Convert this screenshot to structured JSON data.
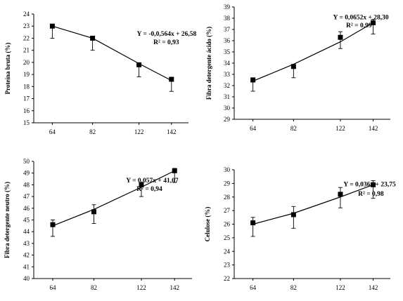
{
  "chart_data": [
    {
      "type": "scatter",
      "categories": [
        "64",
        "82",
        "122",
        "142"
      ],
      "ylabel": "Proteína bruta (%)",
      "yticks": [
        "15",
        "16",
        "17",
        "18",
        "19",
        "20",
        "21",
        "22",
        "23",
        "24"
      ],
      "ylim": [
        15,
        24
      ],
      "values": [
        23.0,
        22.0,
        19.8,
        18.6
      ],
      "err_low": [
        1.0,
        1.0,
        1.0,
        1.0
      ],
      "err_high": [
        0.0,
        0.0,
        0.0,
        0.0
      ],
      "trend": [
        23.0,
        22.0,
        19.9,
        18.5
      ],
      "equation": "Y = -0,0,564x + 26,58",
      "r2": "R² = 0,93",
      "eq_anchor": [
        2,
        22.2
      ],
      "r2_anchor": [
        2.32,
        21.5
      ]
    },
    {
      "type": "scatter",
      "categories": [
        "64",
        "82",
        "122",
        "142"
      ],
      "ylabel": "Fibra detergente ácido (%)",
      "yticks": [
        "29",
        "30",
        "31",
        "32",
        "33",
        "34",
        "35",
        "36",
        "37",
        "38",
        "39"
      ],
      "ylim": [
        29,
        39
      ],
      "values": [
        32.5,
        33.7,
        36.3,
        37.6
      ],
      "err_low": [
        1.0,
        1.0,
        1.0,
        1.0
      ],
      "err_high": [
        0.2,
        0.0,
        0.5,
        0.3
      ],
      "trend": [
        32.4,
        33.9,
        35.9,
        37.6
      ],
      "equation": "Y = 0,0652x + 28,30",
      "r2": "R² = 0,99",
      "eq_anchor": [
        1.9,
        37.9
      ],
      "r2_anchor": [
        2.15,
        37.2
      ]
    },
    {
      "type": "scatter",
      "categories": [
        "64",
        "82",
        "122",
        "142"
      ],
      "ylabel": "Fibra detergente neutro (%)",
      "yticks": [
        "40",
        "41",
        "42",
        "43",
        "44",
        "45",
        "46",
        "47",
        "48",
        "49",
        "50"
      ],
      "ylim": [
        40,
        50
      ],
      "values": [
        44.6,
        45.7,
        48.0,
        49.2
      ],
      "err_low": [
        1.0,
        1.0,
        1.0,
        1.0
      ],
      "err_high": [
        0.4,
        0.6,
        0.2,
        0.2
      ],
      "trend": [
        44.5,
        45.9,
        47.8,
        49.2
      ],
      "equation": "Y = 0,057x + 41,07",
      "r2": "R² = 0,94",
      "eq_anchor": [
        1.75,
        48.2
      ],
      "r2_anchor": [
        1.95,
        47.5
      ]
    },
    {
      "type": "scatter",
      "categories": [
        "64",
        "82",
        "122",
        "142"
      ],
      "ylabel": "Celulose (%)",
      "yticks": [
        "22",
        "23",
        "24",
        "25",
        "26",
        "27",
        "28",
        "29",
        "30"
      ],
      "ylim": [
        22,
        30
      ],
      "values": [
        26.1,
        26.7,
        28.2,
        28.9
      ],
      "err_low": [
        1.0,
        1.0,
        1.0,
        1.0
      ],
      "err_high": [
        0.4,
        0.6,
        0.5,
        0.3
      ],
      "trend": [
        26.0,
        26.8,
        28.0,
        28.9
      ],
      "equation": "Y = 0,036x + 23,75",
      "r2": "R² = 0,98",
      "eq_anchor": [
        2.1,
        28.8
      ],
      "r2_anchor": [
        2.38,
        28.1
      ]
    }
  ]
}
